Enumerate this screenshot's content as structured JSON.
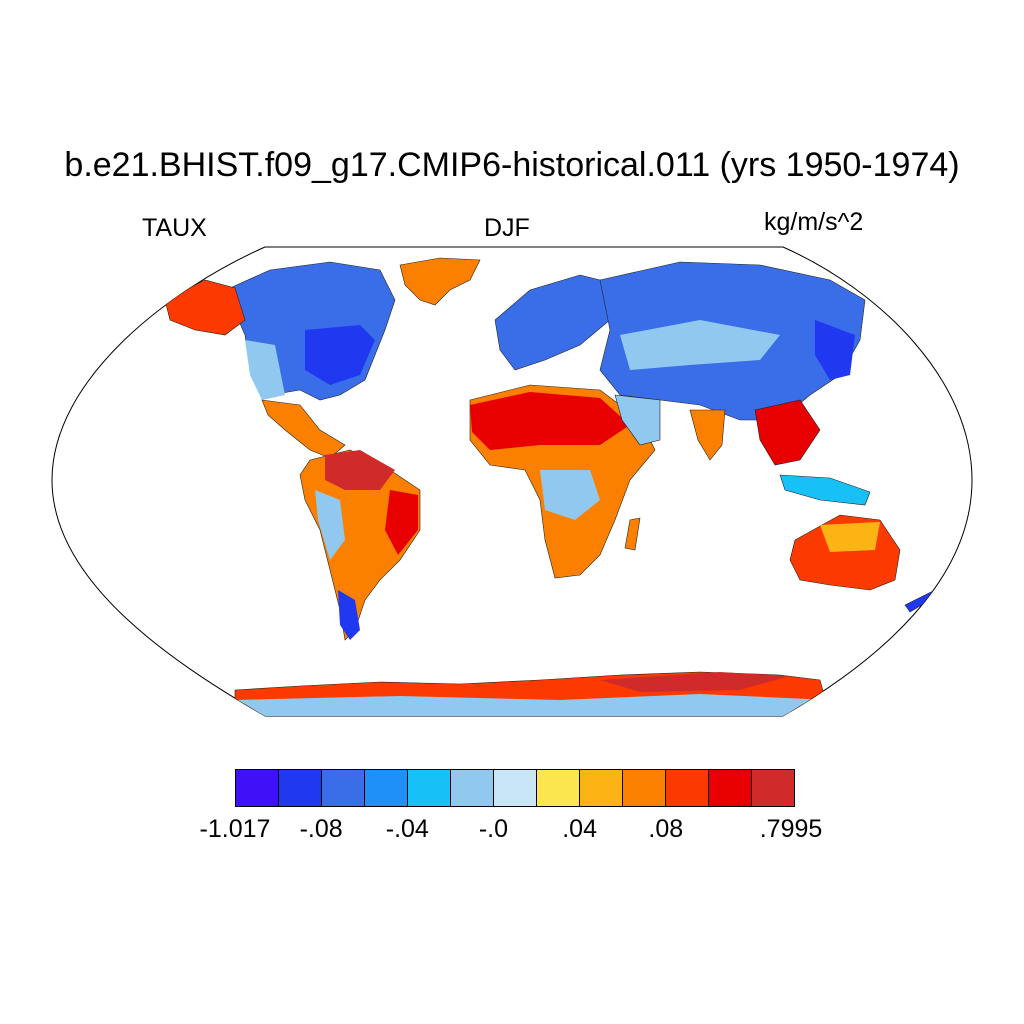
{
  "title": "b.e21.BHIST.f09_g17.CMIP6-historical.011 (yrs 1950-1974)",
  "left_label": "TAUX",
  "center_label": "DJF",
  "right_label": "kg/m/s^2",
  "colorbar": {
    "colors": [
      "#4010f8",
      "#2038f0",
      "#3a6ee8",
      "#1f90f8",
      "#18c0f8",
      "#90c8f0",
      "#c8e6f6",
      "#fce650",
      "#fcb414",
      "#fc8000",
      "#fc3a00",
      "#e80000",
      "#d02a2a"
    ],
    "labels": [
      "-1.017",
      "-.08",
      "-.04",
      "-.0",
      ".04",
      ".08",
      ".7995"
    ]
  },
  "map": {
    "projection": "Robinson",
    "land_regions": [
      {
        "name": "North America (north)",
        "color": "#3a6ee8"
      },
      {
        "name": "Alaska",
        "color": "#fc3a00"
      },
      {
        "name": "Greenland",
        "color": "#fc8000"
      },
      {
        "name": "South America (tropics)",
        "color": "#d02a2a"
      },
      {
        "name": "Patagonia",
        "color": "#2038f0"
      },
      {
        "name": "Europe",
        "color": "#3a6ee8"
      },
      {
        "name": "Northern Asia",
        "color": "#3a6ee8"
      },
      {
        "name": "Sahara",
        "color": "#e80000"
      },
      {
        "name": "Southern Africa",
        "color": "#fc8000"
      },
      {
        "name": "Southeast Asia",
        "color": "#e80000"
      },
      {
        "name": "Australia",
        "color": "#fc3a00"
      },
      {
        "name": "Antarctica",
        "color": "#fc3a00"
      }
    ]
  }
}
